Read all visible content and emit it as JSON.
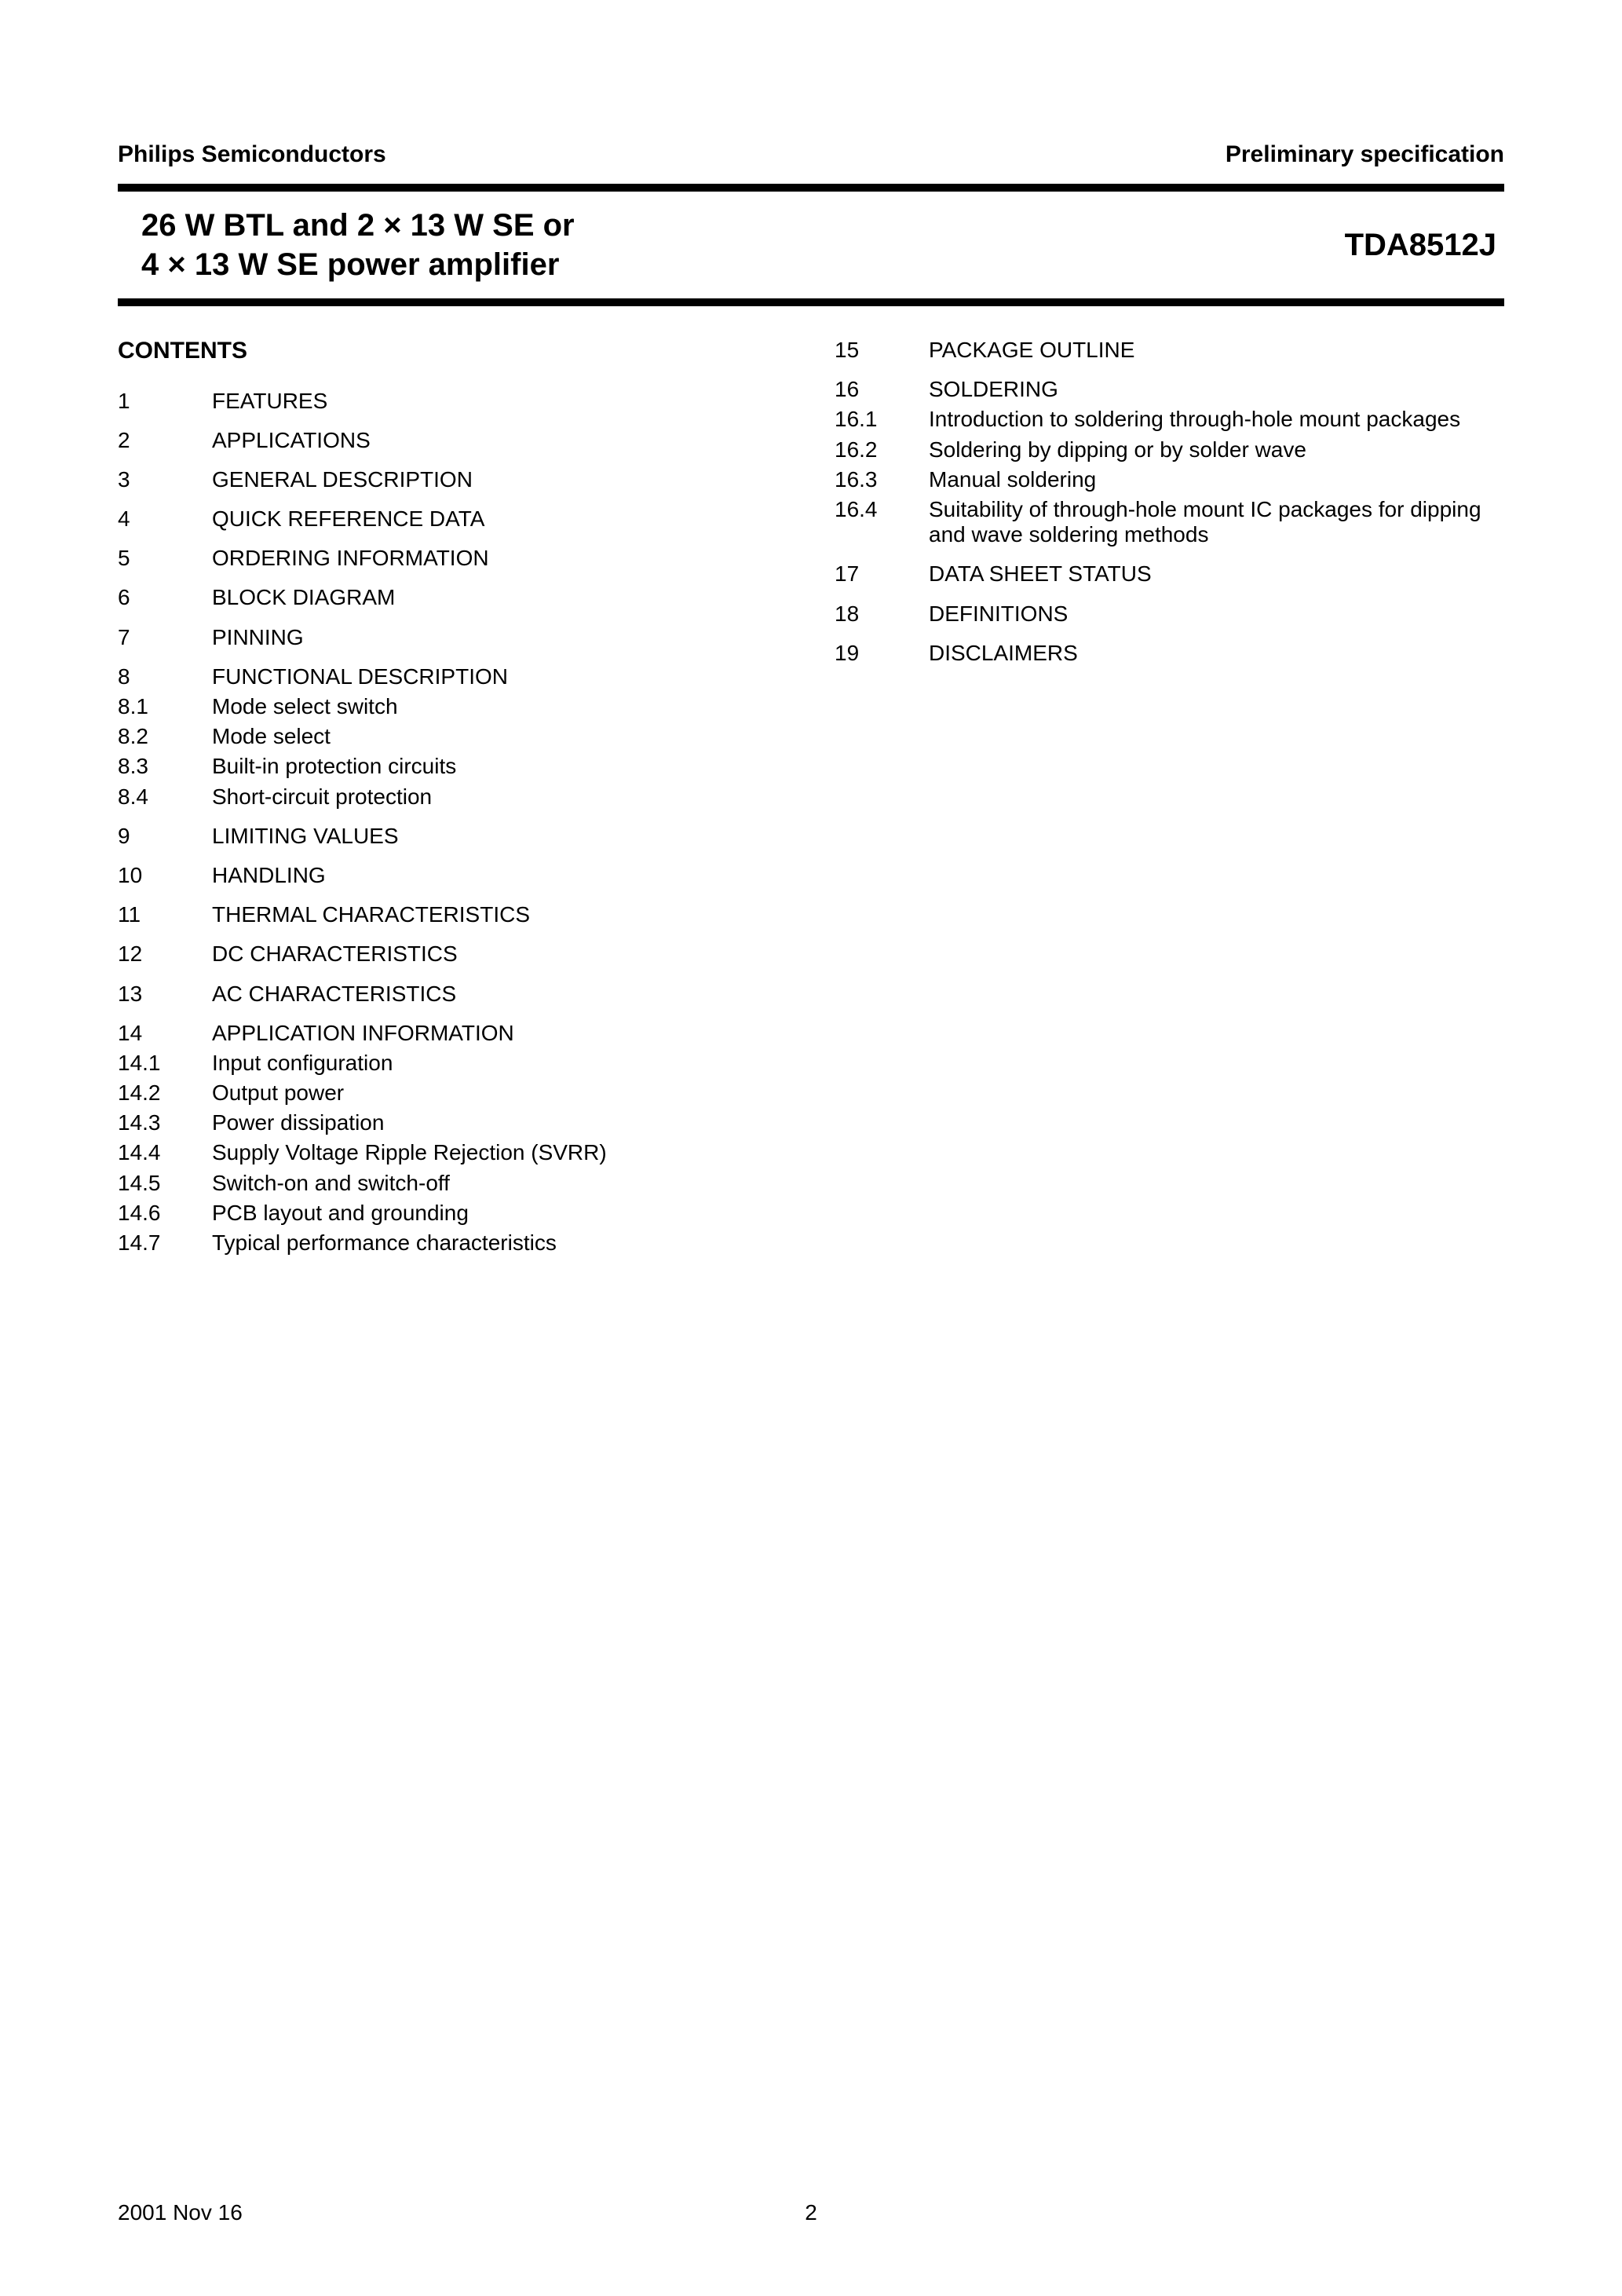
{
  "header": {
    "left": "Philips Semiconductors",
    "right": "Preliminary specification"
  },
  "title": {
    "left_line1": "26 W BTL and 2 × 13 W SE or",
    "left_line2": "4 × 13 W SE power amplifier",
    "right": "TDA8512J"
  },
  "contents_heading": "CONTENTS",
  "toc_left": [
    {
      "num": "1",
      "title": "FEATURES",
      "section": true
    },
    {
      "num": "2",
      "title": "APPLICATIONS",
      "section": true
    },
    {
      "num": "3",
      "title": "GENERAL DESCRIPTION",
      "section": true
    },
    {
      "num": "4",
      "title": "QUICK REFERENCE DATA",
      "section": true
    },
    {
      "num": "5",
      "title": "ORDERING INFORMATION",
      "section": true
    },
    {
      "num": "6",
      "title": "BLOCK DIAGRAM",
      "section": true
    },
    {
      "num": "7",
      "title": "PINNING",
      "section": true
    },
    {
      "num": "8",
      "title": "FUNCTIONAL DESCRIPTION",
      "section": true
    },
    {
      "num": "8.1",
      "title": "Mode select switch",
      "section": false
    },
    {
      "num": "8.2",
      "title": "Mode select",
      "section": false
    },
    {
      "num": "8.3",
      "title": "Built-in protection circuits",
      "section": false
    },
    {
      "num": "8.4",
      "title": "Short-circuit protection",
      "section": false
    },
    {
      "num": "9",
      "title": "LIMITING VALUES",
      "section": true
    },
    {
      "num": "10",
      "title": "HANDLING",
      "section": true
    },
    {
      "num": "11",
      "title": "THERMAL CHARACTERISTICS",
      "section": true
    },
    {
      "num": "12",
      "title": "DC CHARACTERISTICS",
      "section": true
    },
    {
      "num": "13",
      "title": "AC CHARACTERISTICS",
      "section": true
    },
    {
      "num": "14",
      "title": "APPLICATION INFORMATION",
      "section": true
    },
    {
      "num": "14.1",
      "title": "Input configuration",
      "section": false
    },
    {
      "num": "14.2",
      "title": "Output power",
      "section": false
    },
    {
      "num": "14.3",
      "title": "Power dissipation",
      "section": false
    },
    {
      "num": "14.4",
      "title": "Supply Voltage Ripple Rejection (SVRR)",
      "section": false
    },
    {
      "num": "14.5",
      "title": "Switch-on and switch-off",
      "section": false
    },
    {
      "num": "14.6",
      "title": "PCB layout and grounding",
      "section": false
    },
    {
      "num": "14.7",
      "title": "Typical performance characteristics",
      "section": false
    }
  ],
  "toc_right": [
    {
      "num": "15",
      "title": "PACKAGE OUTLINE",
      "section": true
    },
    {
      "num": "16",
      "title": "SOLDERING",
      "section": true
    },
    {
      "num": "16.1",
      "title": "Introduction to soldering through-hole mount packages",
      "section": false
    },
    {
      "num": "16.2",
      "title": "Soldering by dipping or by solder wave",
      "section": false
    },
    {
      "num": "16.3",
      "title": "Manual soldering",
      "section": false
    },
    {
      "num": "16.4",
      "title": "Suitability of through-hole mount IC packages for dipping and wave soldering methods",
      "section": false
    },
    {
      "num": "17",
      "title": "DATA SHEET STATUS",
      "section": true
    },
    {
      "num": "18",
      "title": "DEFINITIONS",
      "section": true
    },
    {
      "num": "19",
      "title": "DISCLAIMERS",
      "section": true
    }
  ],
  "footer": {
    "date": "2001 Nov 16",
    "page": "2"
  }
}
